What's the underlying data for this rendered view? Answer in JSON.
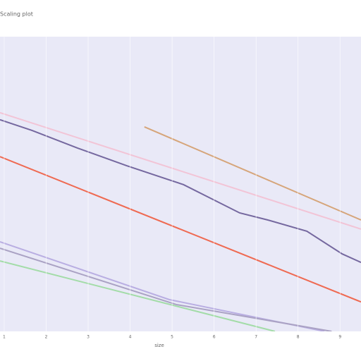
{
  "chart_data": {
    "type": "line",
    "title": "Scaling plot",
    "x_label": "size",
    "xlim": [
      0.9,
      9.5
    ],
    "ylim": [
      0,
      10
    ],
    "xticks": [
      1,
      2,
      3,
      4,
      5,
      6,
      7,
      8,
      9
    ],
    "series": [
      {
        "color": "#75689f",
        "x": [
          0.9,
          1.66,
          2.75,
          3.92,
          5.27,
          6.61,
          7.28,
          8.21,
          9.05,
          9.5
        ],
        "values": [
          7.18,
          6.82,
          6.22,
          5.62,
          4.98,
          4.02,
          3.78,
          3.4,
          2.63,
          2.34
        ]
      },
      {
        "color": "#f2c4d6",
        "x": [
          0.9,
          9.5
        ],
        "values": [
          7.42,
          3.47
        ]
      },
      {
        "color": "#d6a57a",
        "x": [
          4.34,
          9.5
        ],
        "values": [
          6.94,
          3.78
        ]
      },
      {
        "color": "#ef6a52",
        "x": [
          0.9,
          9.5
        ],
        "values": [
          5.93,
          1.0
        ]
      },
      {
        "color": "#b9aee2",
        "x": [
          0.9,
          4.93,
          8.63
        ],
        "values": [
          3.04,
          1.08,
          0
        ]
      },
      {
        "color": "#aaa2c4",
        "x": [
          0.9,
          5.1,
          8.8
        ],
        "values": [
          2.82,
          0.91,
          0
        ]
      },
      {
        "color": "#a3dca8",
        "x": [
          0.9,
          7.45
        ],
        "values": [
          2.39,
          0
        ]
      }
    ]
  }
}
